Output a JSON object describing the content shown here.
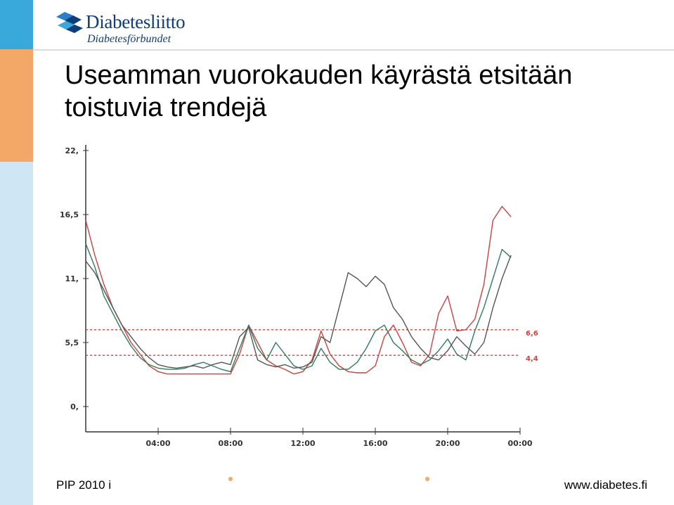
{
  "logo": {
    "name": "Diabetesliitto",
    "subname": "Diabetesförbundet"
  },
  "title": {
    "line1": "Useamman vuorokauden käyrästä etsitään",
    "line2": "toistuvia trendejä"
  },
  "footer": {
    "left": "PIP 2010 i",
    "right": "www.diabetes.fi"
  },
  "colors": {
    "sidebar_blue": "#39a9dc",
    "sidebar_orange": "#f4a868",
    "sidebar_light": "#cfe7f4",
    "brand": "#0f3d7a",
    "series_red": "#d04040",
    "series_green": "#2e7d5b",
    "series_gray": "#555555"
  },
  "chart_data": {
    "type": "line",
    "x_ticks": [
      "04:00",
      "08:00",
      "12:00",
      "16:00",
      "20:00",
      "00:00"
    ],
    "y_ticks": [
      "0,",
      "5,5",
      "11,",
      "16,5",
      "22,"
    ],
    "ylim": [
      0,
      22
    ],
    "xlim": [
      0,
      24
    ],
    "reference_lines": [
      {
        "value": 6.6,
        "label": "6,6",
        "color": "#d04040"
      },
      {
        "value": 4.4,
        "label": "4,4",
        "color": "#d04040"
      }
    ],
    "series": [
      {
        "color": "#d04040",
        "x": [
          0,
          0.5,
          1,
          1.5,
          2,
          2.5,
          3,
          3.5,
          4,
          4.5,
          5,
          5.5,
          6,
          6.5,
          7,
          7.5,
          8,
          8.5,
          9,
          9.5,
          10,
          10.5,
          11,
          11.5,
          12,
          12.5,
          13,
          13.5,
          14,
          14.5,
          15,
          15.5,
          16,
          16.5,
          17,
          17.5,
          18,
          18.5,
          19,
          19.5,
          20,
          20.5,
          21,
          21.5,
          22,
          22.5,
          23,
          23.5
        ],
        "y": [
          16,
          13,
          10.5,
          8.5,
          7,
          5.5,
          4.5,
          3.5,
          3,
          2.8,
          2.8,
          2.8,
          2.8,
          2.8,
          2.8,
          2.8,
          2.8,
          4.5,
          7,
          5.5,
          4,
          3.5,
          3.2,
          2.8,
          3,
          4,
          6.5,
          4.5,
          3.5,
          3,
          2.9,
          2.9,
          3.5,
          6,
          7,
          5.5,
          3.8,
          3.5,
          4.5,
          8,
          9.5,
          6.5,
          6.6,
          7.5,
          10.5,
          16,
          17.2,
          16.3
        ]
      },
      {
        "color": "#2e7d5b",
        "x": [
          0,
          0.5,
          1,
          1.5,
          2,
          2.5,
          3,
          3.5,
          4,
          4.5,
          5,
          5.5,
          6,
          6.5,
          7,
          7.5,
          8,
          8.5,
          9,
          9.5,
          10,
          10.5,
          11,
          11.5,
          12,
          12.5,
          13,
          13.5,
          14,
          14.5,
          15,
          15.5,
          16,
          16.5,
          17,
          17.5,
          18,
          18.5,
          19,
          19.5,
          20,
          20.5,
          21,
          21.5,
          22,
          22.5,
          23,
          23.5
        ],
        "y": [
          14,
          12,
          9.5,
          8,
          6.5,
          5.2,
          4.2,
          3.6,
          3.3,
          3.2,
          3.2,
          3.3,
          3.6,
          3.8,
          3.5,
          3.2,
          3,
          5,
          7,
          5,
          4,
          5.5,
          4.5,
          3.5,
          3.2,
          3.5,
          5,
          3.8,
          3.2,
          3.2,
          3.8,
          5,
          6.5,
          7,
          5.5,
          4.8,
          4,
          3.6,
          4,
          4.8,
          5.8,
          4.5,
          4,
          6.5,
          8.5,
          11,
          13.5,
          12.8
        ]
      },
      {
        "color": "#555555",
        "x": [
          0,
          0.5,
          1,
          1.5,
          2,
          2.5,
          3,
          3.5,
          4,
          4.5,
          5,
          5.5,
          6,
          6.5,
          7,
          7.5,
          8,
          8.5,
          9,
          9.5,
          10,
          10.5,
          11,
          11.5,
          12,
          12.5,
          13,
          13.5,
          14,
          14.5,
          15,
          15.5,
          16,
          16.5,
          17,
          17.5,
          18,
          18.5,
          19,
          19.5,
          20,
          20.5,
          21,
          21.5,
          22,
          22.5,
          23,
          23.5
        ],
        "y": [
          12.5,
          11.5,
          10,
          8.5,
          7,
          6,
          5,
          4.2,
          3.6,
          3.4,
          3.3,
          3.4,
          3.5,
          3.3,
          3.6,
          3.8,
          3.6,
          6,
          6.8,
          4,
          3.6,
          3.4,
          3.6,
          3.3,
          3.4,
          3.8,
          6,
          5.5,
          8.5,
          11.5,
          11,
          10.3,
          11.2,
          10.5,
          8.5,
          7.5,
          6,
          5,
          4.2,
          4,
          4.8,
          6,
          5.2,
          4.5,
          5.5,
          8.5,
          11,
          13
        ]
      }
    ]
  }
}
